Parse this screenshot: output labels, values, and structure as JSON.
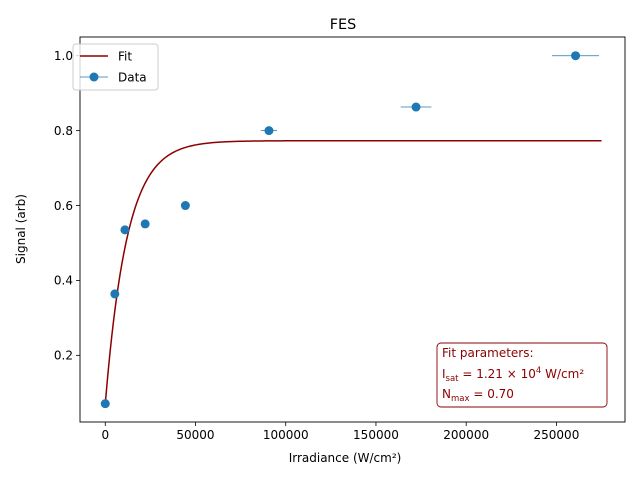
{
  "chart_data": {
    "type": "scatter",
    "title": "FES",
    "xlabel": "Irradiance (W/cm²)",
    "ylabel": "Signal (arb)",
    "xlim": [
      -14000,
      288000
    ],
    "ylim": [
      0.022,
      1.05
    ],
    "xticks": [
      0,
      50000,
      100000,
      150000,
      200000,
      250000
    ],
    "xtick_labels": [
      "0",
      "50000",
      "100000",
      "150000",
      "200000",
      "250000"
    ],
    "yticks": [
      0.2,
      0.4,
      0.6,
      0.8,
      1.0
    ],
    "ytick_labels": [
      "0.2",
      "0.4",
      "0.6",
      "0.8",
      "1.0"
    ],
    "grid": false,
    "legend": {
      "position": "top-left",
      "entries": [
        "Fit",
        "Data"
      ]
    },
    "series": [
      {
        "name": "Data",
        "kind": "errorbar",
        "color": "#1f77b4",
        "x": [
          0,
          5300,
          10900,
          22100,
          44400,
          90700,
          172200,
          260600
        ],
        "y": [
          0.071,
          0.364,
          0.535,
          0.551,
          0.6,
          0.8,
          0.863,
          1.0
        ],
        "xerr": [
          200,
          600,
          1100,
          1800,
          2000,
          4500,
          8500,
          13000
        ]
      },
      {
        "name": "Fit",
        "kind": "line",
        "color": "#8b0000",
        "x_range": [
          0,
          275000
        ],
        "offset": 0.07,
        "amplitude": 0.703,
        "scale": 12100
      }
    ],
    "annotation": {
      "heading": "Fit parameters:",
      "isat_symbol": "I",
      "isat_sub": "sat",
      "isat_value": " = 1.21 × 10",
      "isat_exp": "4",
      "isat_unit": " W/cm²",
      "nmax_symbol": "N",
      "nmax_sub": "max",
      "nmax_value": " = 0.70",
      "color": "#8b0000"
    }
  }
}
